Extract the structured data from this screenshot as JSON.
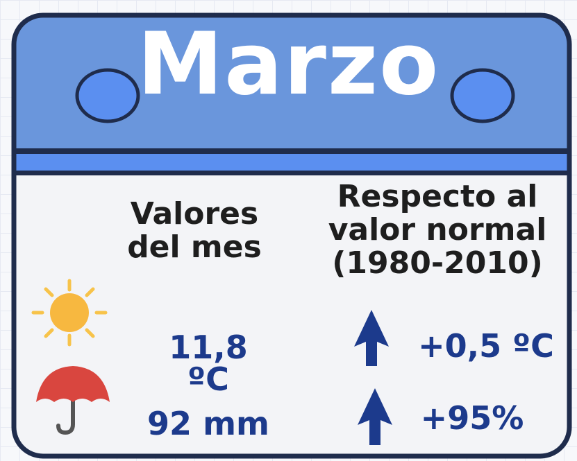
{
  "title": "Marzo",
  "headers": {
    "month": [
      "Valores",
      "del mes"
    ],
    "normal": [
      "Respecto al",
      "valor normal",
      "(1980-2010)"
    ]
  },
  "rows": [
    {
      "value": [
        "11,8",
        "ºC"
      ],
      "diff": "+0,5 ºC"
    },
    {
      "value": [
        "92 mm"
      ],
      "diff": "+95%"
    }
  ]
}
